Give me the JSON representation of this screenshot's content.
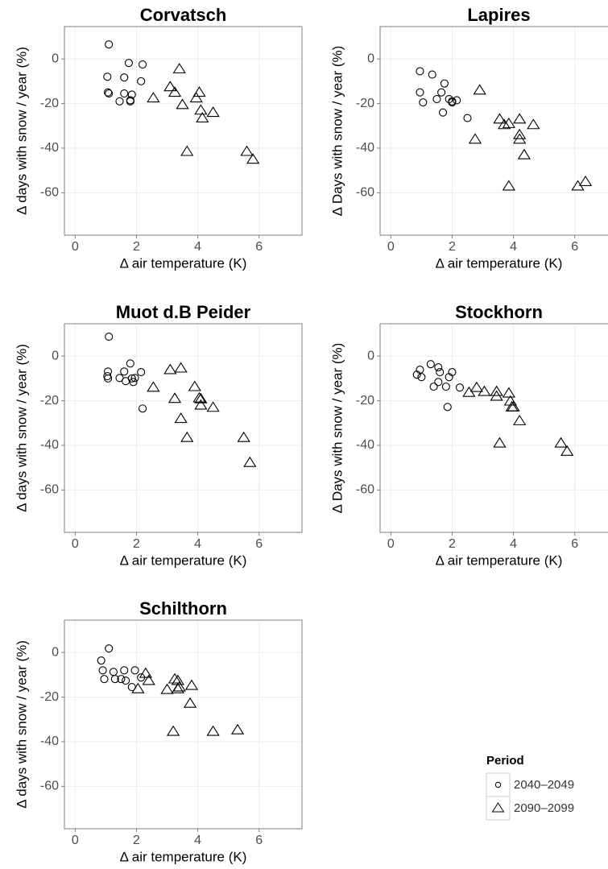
{
  "chart_data": [
    {
      "type": "scatter",
      "title": "Corvatsch",
      "x_label": "Δ air temperature (K)",
      "y_label": "Δ days with snow / year (%)",
      "xlim": [
        -0.35,
        7.4
      ],
      "ylim": [
        -79,
        14.5
      ],
      "xticks": [
        0,
        2,
        4,
        6
      ],
      "yticks": [
        -60,
        -40,
        -20,
        0
      ],
      "grid": true,
      "series": [
        {
          "marker": "circle",
          "color": "#000000",
          "x": [
            1.1,
            1.05,
            1.07,
            1.1,
            1.45,
            1.6,
            1.6,
            1.75,
            1.8,
            1.85,
            1.8,
            2.15,
            2.2
          ],
          "values": [
            6.5,
            -8,
            -15,
            -15.5,
            -19,
            -15.5,
            -8.3,
            -1.8,
            -18.5,
            -16,
            -19,
            -10,
            -2.5
          ]
        },
        {
          "marker": "triangle",
          "color": "#000000",
          "x": [
            2.55,
            3.1,
            3.25,
            3.4,
            3.5,
            3.95,
            4.05,
            4.1,
            4.15,
            4.5,
            3.65,
            5.6,
            5.8
          ],
          "values": [
            -17.5,
            -12.5,
            -15,
            -4.5,
            -20.5,
            -17.5,
            -15,
            -23,
            -26.5,
            -24,
            -41.5,
            -41.5,
            -45
          ]
        }
      ]
    },
    {
      "type": "scatter",
      "title": "Lapires",
      "x_label": "Δ air temperature (K)",
      "y_label": "Δ Days with snow / year (%)",
      "xlim": [
        -0.35,
        7.4
      ],
      "ylim": [
        -79,
        14.5
      ],
      "xticks": [
        0,
        2,
        4,
        6
      ],
      "yticks": [
        -60,
        -40,
        -20,
        0
      ],
      "grid": true,
      "series": [
        {
          "marker": "circle",
          "color": "#000000",
          "x": [
            0.95,
            0.95,
            1.05,
            1.35,
            1.5,
            1.65,
            1.7,
            1.75,
            1.9,
            2.0,
            2.15,
            2.0,
            2.5
          ],
          "values": [
            -5.5,
            -15,
            -19.5,
            -7,
            -18,
            -15,
            -24,
            -11,
            -18,
            -19,
            -18.5,
            -19.5,
            -26.5
          ]
        },
        {
          "marker": "triangle",
          "color": "#000000",
          "x": [
            2.9,
            2.75,
            3.55,
            3.7,
            3.85,
            3.85,
            4.2,
            4.2,
            4.2,
            4.35,
            4.65,
            6.1,
            6.35
          ],
          "values": [
            -14,
            -36,
            -27,
            -29.5,
            -29,
            -57,
            -27,
            -34,
            -36,
            -43,
            -29.5,
            -57,
            -55
          ]
        }
      ]
    },
    {
      "type": "scatter",
      "title": "Muot d.B Peider",
      "x_label": "Δ air temperature (K)",
      "y_label": "Δ days with snow / year (%)",
      "xlim": [
        -0.35,
        7.4
      ],
      "ylim": [
        -79,
        14.5
      ],
      "xticks": [
        0,
        2,
        4,
        6
      ],
      "yticks": [
        -60,
        -40,
        -20,
        0
      ],
      "grid": true,
      "series": [
        {
          "marker": "circle",
          "color": "#000000",
          "x": [
            1.1,
            1.07,
            1.05,
            1.07,
            1.45,
            1.6,
            1.65,
            1.8,
            1.85,
            1.9,
            1.95,
            2.15,
            2.2
          ],
          "values": [
            8.7,
            -6.9,
            -9,
            -10,
            -9.8,
            -6.9,
            -11.2,
            -3.3,
            -10,
            -11.6,
            -9.8,
            -7.2,
            -23.5
          ]
        },
        {
          "marker": "triangle",
          "color": "#000000",
          "x": [
            2.55,
            3.1,
            3.25,
            3.45,
            3.45,
            3.65,
            3.9,
            4.05,
            4.1,
            4.1,
            4.5,
            5.5,
            5.7
          ],
          "values": [
            -14,
            -6.1,
            -19,
            -5.4,
            -28,
            -36.5,
            -13.7,
            -18.8,
            -19.2,
            -22,
            -23,
            -36.5,
            -47.7
          ]
        }
      ]
    },
    {
      "type": "scatter",
      "title": "Stockhorn",
      "x_label": "Δ air temperature (K)",
      "y_label": "Δ Days with snow / year (%)",
      "xlim": [
        -0.35,
        7.4
      ],
      "ylim": [
        -79,
        14.5
      ],
      "xticks": [
        0,
        2,
        4,
        6
      ],
      "yticks": [
        -60,
        -40,
        -20,
        0
      ],
      "grid": true,
      "series": [
        {
          "marker": "circle",
          "color": "#000000",
          "x": [
            0.85,
            0.95,
            1.0,
            1.3,
            1.4,
            1.55,
            1.6,
            1.55,
            1.8,
            1.85,
            1.9,
            2.0,
            2.25
          ],
          "values": [
            -8.3,
            -6.1,
            -9.4,
            -3.6,
            -13.7,
            -5,
            -7.2,
            -11.6,
            -13.7,
            -22.8,
            -9.4,
            -7.2,
            -14.1
          ]
        },
        {
          "marker": "triangle",
          "color": "#000000",
          "x": [
            2.55,
            2.8,
            3.05,
            3.45,
            3.45,
            3.55,
            3.85,
            3.9,
            3.95,
            4.0,
            4.2,
            5.55,
            5.75
          ],
          "values": [
            -16.3,
            -14.1,
            -15.9,
            -15.9,
            -18,
            -39,
            -16.6,
            -20.2,
            -22.8,
            -22.8,
            -29,
            -39,
            -42.7
          ]
        }
      ]
    },
    {
      "type": "scatter",
      "title": "Schilthorn",
      "x_label": "Δ air temperature (K)",
      "y_label": "Δ days with snow / year (%)",
      "xlim": [
        -0.35,
        7.4
      ],
      "ylim": [
        -79,
        14.5
      ],
      "xticks": [
        0,
        2,
        4,
        6
      ],
      "yticks": [
        -60,
        -40,
        -20,
        0
      ],
      "grid": true,
      "series": [
        {
          "marker": "circle",
          "color": "#000000",
          "x": [
            0.85,
            1.1,
            0.9,
            0.95,
            1.25,
            1.3,
            1.5,
            1.6,
            1.65,
            1.85,
            1.95,
            2.15
          ],
          "values": [
            -3.6,
            1.8,
            -8,
            -11.9,
            -8.7,
            -11.9,
            -11.9,
            -8,
            -12.6,
            -15.5,
            -8,
            -11.2
          ]
        },
        {
          "marker": "triangle",
          "color": "#000000",
          "x": [
            2.05,
            2.3,
            2.4,
            3.0,
            3.2,
            3.25,
            3.35,
            3.35,
            3.4,
            3.75,
            3.8,
            4.5,
            5.3
          ],
          "values": [
            -16.3,
            -9.4,
            -12.6,
            -16.6,
            -35.4,
            -11.9,
            -12.6,
            -16.3,
            -15.5,
            -22.8,
            -14.8,
            -35.4,
            -34.7
          ]
        }
      ]
    }
  ],
  "legend": {
    "title": "Period",
    "position": "bottom-right",
    "entries": [
      {
        "name": "2040–2049",
        "marker": "circle"
      },
      {
        "name": "2090–2099",
        "marker": "triangle"
      }
    ]
  }
}
